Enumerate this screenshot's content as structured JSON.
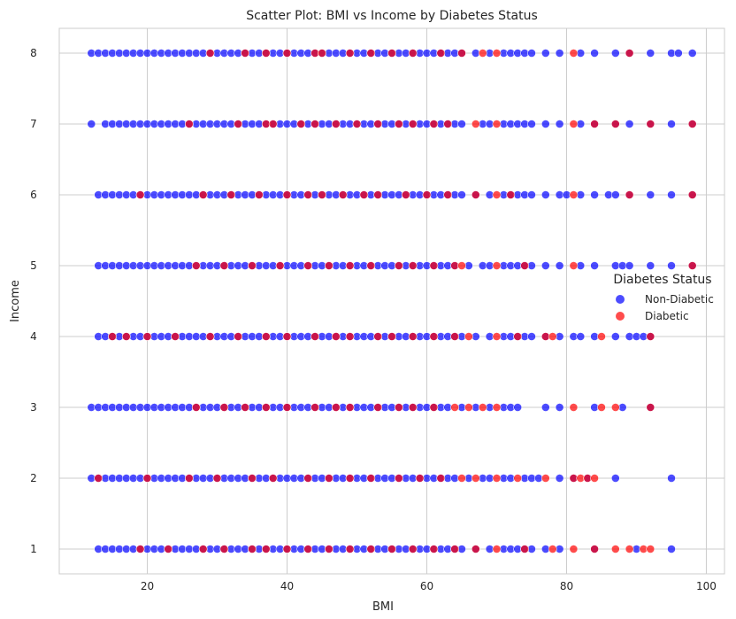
{
  "chart_data": {
    "type": "scatter",
    "title": "Scatter Plot: BMI vs Income by Diabetes Status",
    "xlabel": "BMI",
    "ylabel": "Income",
    "xlim": [
      7.4,
      102.6
    ],
    "ylim": [
      0.65,
      8.35
    ],
    "xticks": [
      20,
      40,
      60,
      80,
      100
    ],
    "yticks": [
      1,
      2,
      3,
      4,
      5,
      6,
      7,
      8
    ],
    "grid": true,
    "legend": {
      "title": "Diabetes Status",
      "placement": "center-right",
      "entries": [
        {
          "label": "Non-Diabetic",
          "color": "#0000ff"
        },
        {
          "label": "Diabetic",
          "color": "#ff0000"
        }
      ]
    },
    "series": [
      {
        "name": "Non-Diabetic",
        "color": "#0000ff",
        "rows": [
          {
            "y": 8,
            "x_min": 12,
            "x_max": 65,
            "extra": [
              67,
              69,
              71,
              72,
              73,
              74,
              75,
              77,
              79,
              82,
              84,
              87,
              89,
              92,
              95,
              96,
              98
            ]
          },
          {
            "y": 7,
            "x_min": 14,
            "x_max": 65,
            "extra": [
              12,
              68,
              69,
              71,
              72,
              73,
              74,
              75,
              77,
              79,
              82,
              84,
              87,
              89,
              92,
              95,
              98
            ]
          },
          {
            "y": 6,
            "x_min": 13,
            "x_max": 65,
            "extra": [
              67,
              69,
              71,
              72,
              73,
              74,
              75,
              77,
              79,
              80,
              82,
              84,
              86,
              87,
              89,
              92,
              95,
              98
            ]
          },
          {
            "y": 5,
            "x_min": 13,
            "x_max": 64,
            "extra": [
              66,
              68,
              69,
              71,
              72,
              73,
              74,
              75,
              77,
              79,
              82,
              84,
              87,
              88,
              89,
              92,
              95,
              98
            ]
          },
          {
            "y": 4,
            "x_min": 13,
            "x_max": 65,
            "extra": [
              67,
              69,
              71,
              72,
              73,
              74,
              75,
              77,
              79,
              81,
              82,
              84,
              87,
              89,
              90,
              91,
              92
            ]
          },
          {
            "y": 3,
            "x_min": 12,
            "x_max": 63,
            "extra": [
              65,
              67,
              69,
              71,
              72,
              73,
              77,
              79,
              84,
              88,
              92
            ]
          },
          {
            "y": 2,
            "x_min": 12,
            "x_max": 64,
            "extra": [
              66,
              68,
              69,
              71,
              72,
              74,
              75,
              76,
              79,
              81,
              83,
              87,
              95
            ]
          },
          {
            "y": 1,
            "x_min": 13,
            "x_max": 65,
            "extra": [
              67,
              69,
              71,
              72,
              73,
              74,
              75,
              77,
              79,
              84,
              90,
              95
            ]
          }
        ]
      },
      {
        "name": "Diabetic",
        "color": "#ff0000",
        "rows": [
          {
            "y": 8,
            "x": [
              29,
              34,
              37,
              40,
              44,
              45,
              49,
              52,
              55,
              58,
              62,
              65,
              68,
              70,
              81,
              89
            ]
          },
          {
            "y": 7,
            "x": [
              26,
              33,
              37,
              38,
              42,
              44,
              47,
              50,
              53,
              56,
              58,
              61,
              63,
              67,
              70,
              81,
              84,
              87,
              92,
              98
            ]
          },
          {
            "y": 6,
            "x": [
              19,
              28,
              32,
              36,
              40,
              43,
              45,
              48,
              51,
              53,
              57,
              60,
              63,
              67,
              70,
              72,
              81,
              89,
              98
            ]
          },
          {
            "y": 5,
            "x": [
              27,
              31,
              35,
              39,
              43,
              46,
              49,
              52,
              56,
              58,
              61,
              64,
              65,
              70,
              74,
              81,
              98
            ]
          },
          {
            "y": 4,
            "x": [
              15,
              17,
              20,
              24,
              29,
              33,
              37,
              40,
              44,
              47,
              49,
              53,
              55,
              58,
              61,
              64,
              66,
              70,
              73,
              77,
              78,
              85,
              92
            ]
          },
          {
            "y": 3,
            "x": [
              27,
              31,
              34,
              37,
              40,
              44,
              47,
              49,
              53,
              56,
              58,
              61,
              64,
              66,
              68,
              70,
              81,
              85,
              87,
              92
            ]
          },
          {
            "y": 2,
            "x": [
              13,
              20,
              26,
              30,
              35,
              38,
              43,
              46,
              49,
              52,
              56,
              59,
              62,
              65,
              67,
              70,
              73,
              77,
              81,
              82,
              83,
              84
            ]
          },
          {
            "y": 1,
            "x": [
              19,
              23,
              28,
              31,
              35,
              37,
              40,
              43,
              46,
              49,
              52,
              55,
              58,
              61,
              64,
              67,
              70,
              74,
              78,
              81,
              84,
              87,
              89,
              91,
              92
            ]
          }
        ]
      }
    ]
  }
}
